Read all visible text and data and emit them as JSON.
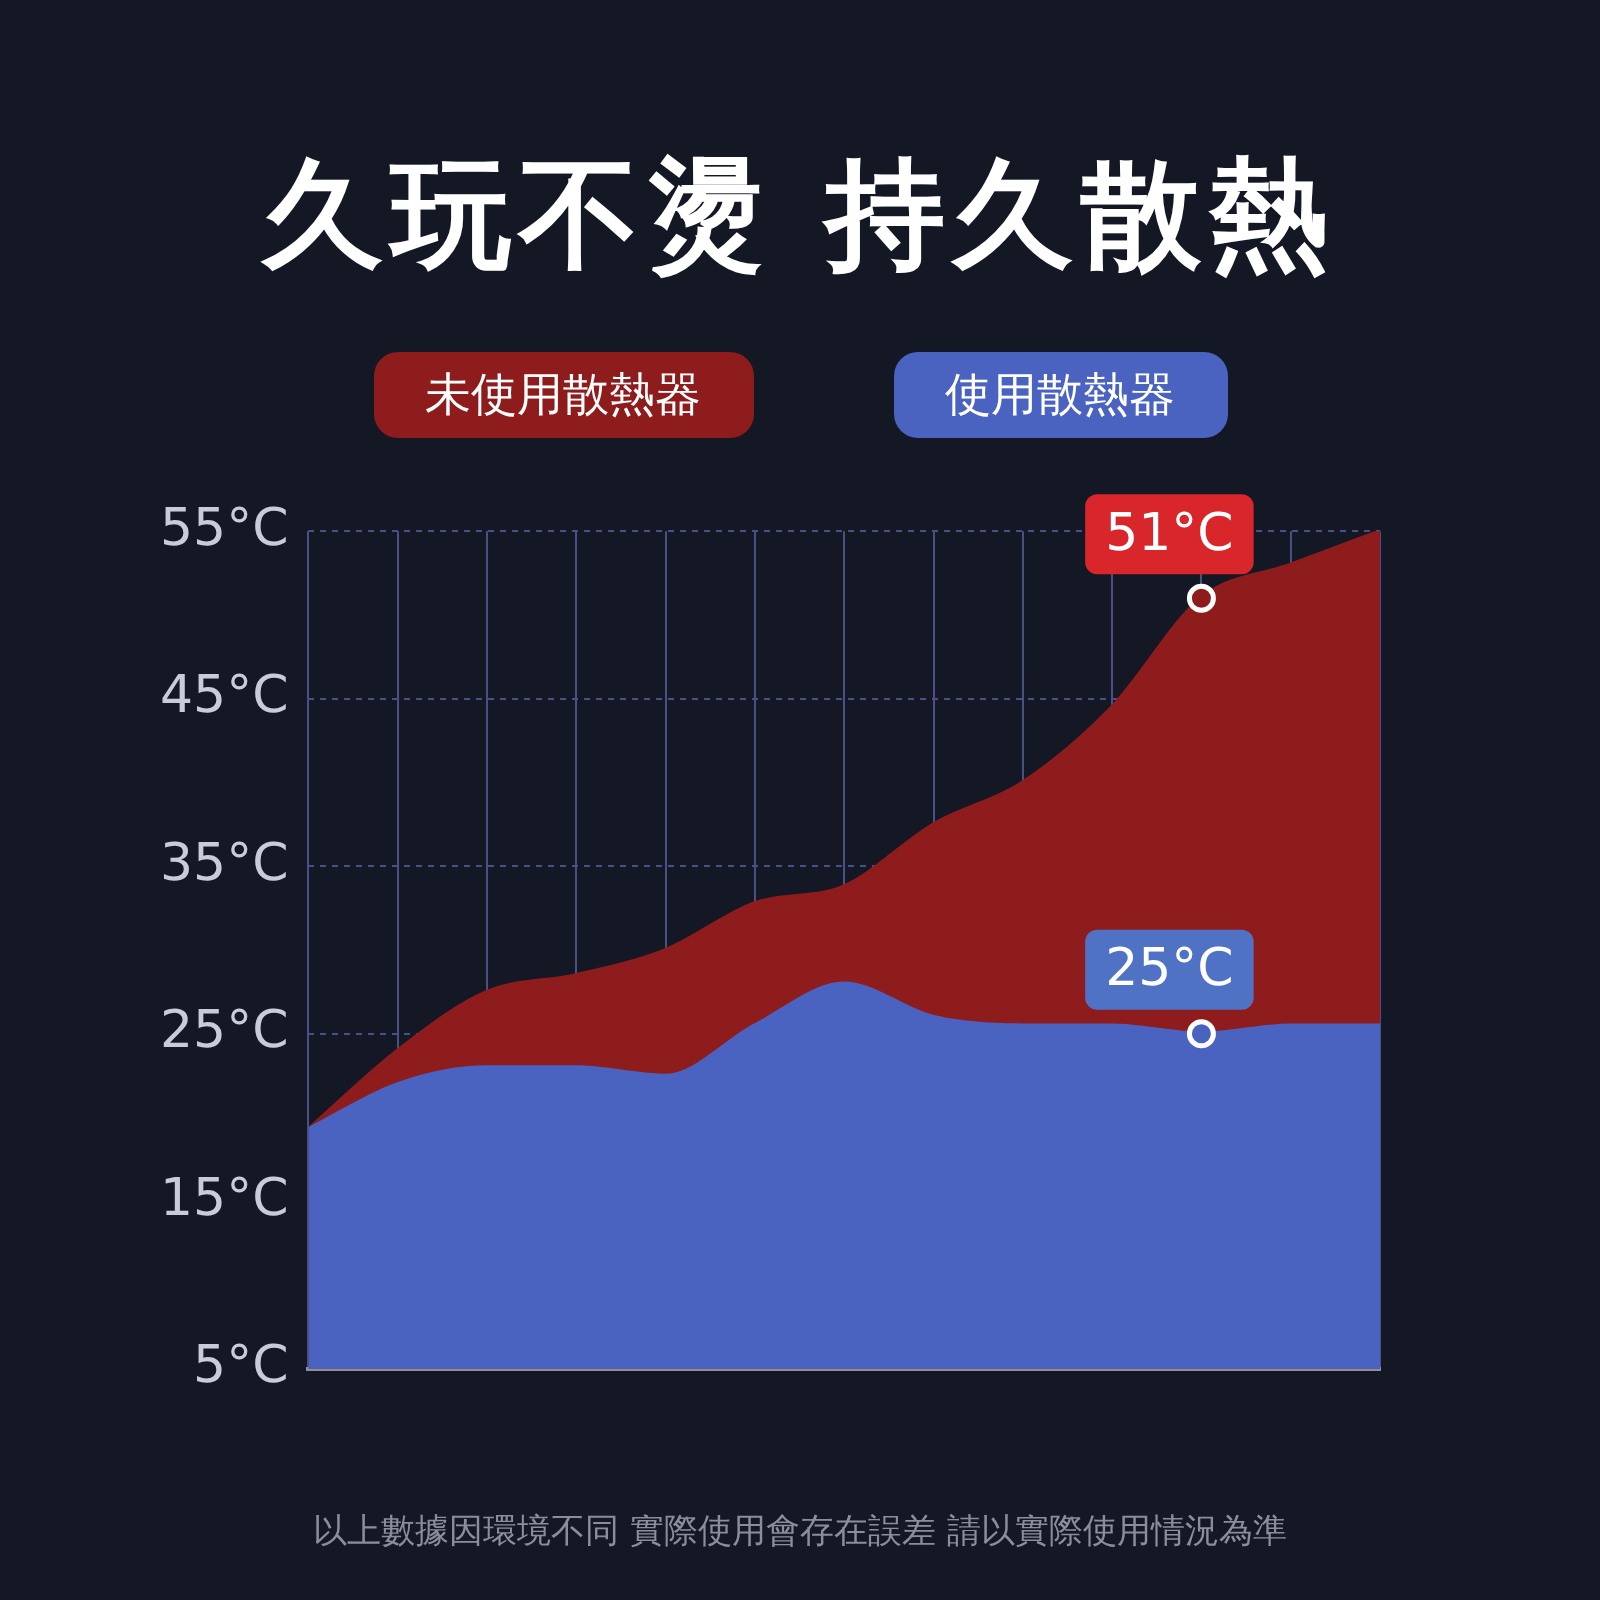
{
  "chart_data": {
    "type": "area",
    "title": "久玩不燙 持久散熱",
    "categories": [
      null,
      null,
      null,
      null,
      null,
      null,
      null,
      null,
      null,
      null,
      null,
      null,
      null
    ],
    "series": [
      {
        "name": "未使用散熱器",
        "color": "#8e1c1c",
        "values": [
          19.3,
          24,
          27.5,
          28.5,
          30,
          32.8,
          33.8,
          37.5,
          40,
          44.5,
          51,
          53,
          55
        ],
        "value_labels": [
          null,
          null,
          null,
          null,
          null,
          null,
          null,
          null,
          null,
          null,
          "51°C",
          null,
          null
        ]
      },
      {
        "name": "使用散熱器",
        "color": "#4a62c0",
        "values": [
          19.3,
          22,
          23,
          23,
          22.5,
          25.5,
          28,
          26,
          25.5,
          25.5,
          25,
          25.5,
          25.5
        ],
        "value_labels": [
          null,
          null,
          null,
          null,
          null,
          null,
          null,
          null,
          null,
          null,
          "25°C",
          null,
          null
        ]
      }
    ],
    "ylim": [
      5,
      55
    ],
    "yticks": [
      {
        "value": 5,
        "label": "5°C"
      },
      {
        "value": 15,
        "label": "15°C"
      },
      {
        "value": 25,
        "label": "25°C"
      },
      {
        "value": 35,
        "label": "35°C"
      },
      {
        "value": 45,
        "label": "45°C"
      },
      {
        "value": 55,
        "label": "55°C"
      }
    ],
    "grid": true,
    "legend": "top",
    "tick_labels": "y",
    "marker": "none",
    "line_style": "solid",
    "annotations": [
      "以上數據因環境不同 實際使用會存在誤差 請以實際使用情況為準"
    ]
  }
}
